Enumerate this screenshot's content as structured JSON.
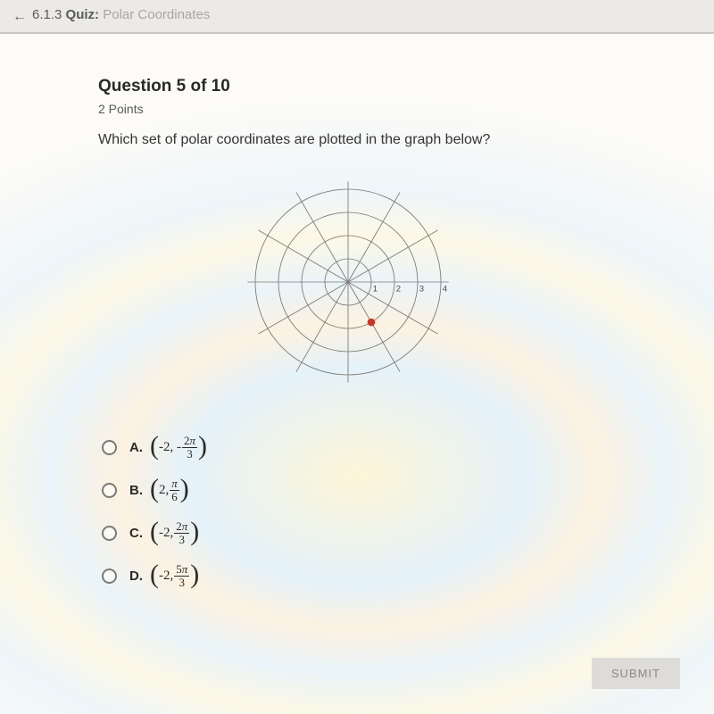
{
  "header": {
    "back_icon": "←",
    "section_num": "6.1.3",
    "section_title": "Quiz:",
    "section_sub": "Polar Coordinates"
  },
  "question": {
    "title": "Question 5 of 10",
    "points": "2 Points",
    "prompt": "Which set of polar coordinates are plotted in the graph below?"
  },
  "graph": {
    "rings": [
      1,
      2,
      3,
      4
    ],
    "angle_lines_deg": [
      0,
      30,
      60,
      90,
      120,
      150,
      180,
      210,
      240,
      270,
      300,
      330
    ],
    "axis_labels": [
      "1",
      "2",
      "3",
      "4"
    ],
    "point": {
      "r": 2,
      "theta_deg": -60
    },
    "grid_color": "#7b7a77",
    "point_color": "#c0392b",
    "label_color": "#4a4a48",
    "max_r": 4
  },
  "choices": [
    {
      "letter": "A.",
      "prefix": "-2, -",
      "frac_num": "2π",
      "frac_den": "3"
    },
    {
      "letter": "B.",
      "prefix": "2, ",
      "frac_num": "π",
      "frac_den": "6"
    },
    {
      "letter": "C.",
      "prefix": "-2, ",
      "frac_num": "2π",
      "frac_den": "3"
    },
    {
      "letter": "D.",
      "prefix": "-2, ",
      "frac_num": "5π",
      "frac_den": "3"
    }
  ],
  "submit_label": "SUBMIT"
}
